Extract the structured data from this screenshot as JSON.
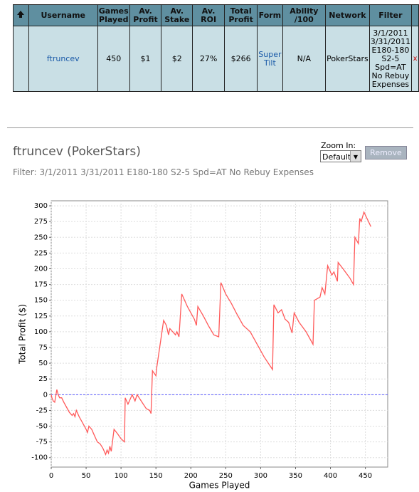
{
  "table": {
    "headers": [
      "Username",
      "Games Played",
      "Av. Profit",
      "Av. Stake",
      "Av. ROI",
      "Total Profit",
      "Form",
      "Ability /100",
      "Network",
      "Filter"
    ],
    "rows": [
      [
        "ftruncev",
        "450",
        "$1",
        "$2",
        "27%",
        "$266",
        "Super Tilt",
        "N/A",
        "PokerStars",
        "3/1/2011 3/31/2011 E180-180 S2-5 Spd=AT No Rebuy Expenses"
      ]
    ],
    "delete_label": "x"
  },
  "profile": {
    "title": "ftruncev (PokerStars)",
    "filter": "Filter: 3/1/2011 3/31/2011 E180-180 S2-5 Spd=AT No Rebuy Expenses",
    "zoom_label": "Zoom In:",
    "zoom_option": "Default",
    "remove_button": "Remove"
  },
  "chart_data": {
    "type": "line",
    "xlabel": "Games Played",
    "ylabel": "Total Profit ($)",
    "color": "#ff5a5a",
    "zero_line_color": "#5a5aff",
    "grid": true,
    "x": [
      0,
      1,
      3,
      5,
      8,
      10,
      12,
      15,
      18,
      22,
      26,
      30,
      32,
      34,
      36,
      40,
      45,
      50,
      52,
      54,
      58,
      62,
      66,
      70,
      74,
      78,
      80,
      82,
      84,
      86,
      90,
      95,
      100,
      105,
      106,
      110,
      116,
      120,
      123,
      130,
      136,
      141,
      143,
      145,
      150,
      151,
      161,
      165,
      168,
      170,
      178,
      180,
      183,
      187,
      195,
      200,
      205,
      208,
      210,
      218,
      225,
      233,
      240,
      243,
      250,
      258,
      265,
      275,
      285,
      295,
      305,
      317,
      319,
      325,
      330,
      335,
      340,
      345,
      348,
      355,
      365,
      375,
      377,
      385,
      388,
      392,
      396,
      402,
      405,
      410,
      411,
      418,
      428,
      433,
      435,
      440,
      442,
      444,
      448,
      458
    ],
    "values": [
      0,
      -5,
      -10,
      -12,
      8,
      0,
      -5,
      -5,
      -12,
      -20,
      -28,
      -33,
      -30,
      -35,
      -25,
      -35,
      -45,
      -55,
      -60,
      -50,
      -55,
      -65,
      -75,
      -78,
      -85,
      -95,
      -88,
      -93,
      -82,
      -90,
      -55,
      -62,
      -70,
      -75,
      -5,
      -15,
      0,
      -10,
      0,
      -12,
      -22,
      -25,
      -30,
      38,
      30,
      42,
      118,
      110,
      95,
      105,
      95,
      100,
      92,
      160,
      140,
      130,
      120,
      110,
      140,
      125,
      110,
      95,
      92,
      178,
      160,
      145,
      130,
      110,
      100,
      80,
      60,
      40,
      143,
      130,
      135,
      120,
      115,
      98,
      130,
      115,
      100,
      80,
      150,
      155,
      170,
      160,
      205,
      190,
      195,
      180,
      210,
      200,
      185,
      175,
      250,
      240,
      280,
      275,
      290,
      267
    ],
    "xlim": [
      0,
      482
    ],
    "ylim": [
      -115,
      308
    ],
    "xticks": [
      0,
      50,
      100,
      150,
      200,
      250,
      300,
      350,
      400,
      450
    ],
    "yticks": [
      -100,
      -75,
      -50,
      -25,
      0,
      25,
      50,
      75,
      100,
      125,
      150,
      175,
      200,
      225,
      250,
      275,
      300
    ]
  }
}
